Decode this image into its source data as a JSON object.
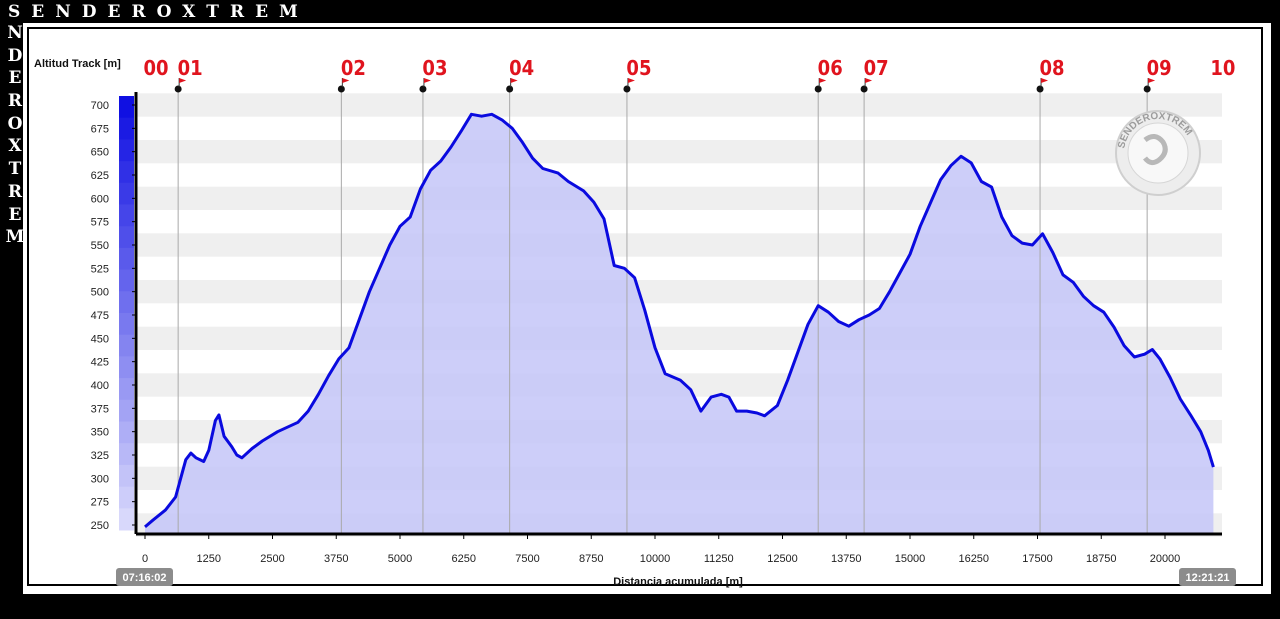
{
  "brand": {
    "top": "SENDEROXTREM",
    "side": [
      "N",
      "D",
      "E",
      "R",
      "O",
      "X",
      "T",
      "R",
      "E",
      "M"
    ],
    "logo_text": "SENDEROXTREM"
  },
  "chart_data": {
    "type": "area",
    "ylabel": "Altitud Track [m]",
    "xlabel": "Distancia acumulada [m]",
    "xlim": [
      -400,
      21900
    ],
    "ylim": [
      240,
      712
    ],
    "yticks": [
      250,
      275,
      300,
      325,
      350,
      375,
      400,
      425,
      450,
      475,
      500,
      525,
      550,
      575,
      600,
      625,
      650,
      675,
      700
    ],
    "xticks": [
      0,
      1250,
      2500,
      3750,
      5000,
      6250,
      7500,
      8750,
      10000,
      11250,
      12500,
      13750,
      15000,
      16250,
      17500,
      18750,
      20000
    ],
    "grid": true,
    "start_time": "07:16:02",
    "end_time": "12:21:21",
    "line_color": "#0a0adf",
    "fill_color": "#c4c6f8",
    "waypoints": [
      {
        "label": "00",
        "x": 0
      },
      {
        "label": "01",
        "x": 650
      },
      {
        "label": "02",
        "x": 3850
      },
      {
        "label": "03",
        "x": 5450
      },
      {
        "label": "04",
        "x": 7150
      },
      {
        "label": "05",
        "x": 9450
      },
      {
        "label": "06",
        "x": 13200
      },
      {
        "label": "07",
        "x": 14100
      },
      {
        "label": "08",
        "x": 17550
      },
      {
        "label": "09",
        "x": 19650
      },
      {
        "label": "10",
        "x": 20900
      }
    ],
    "series": [
      {
        "values": [
          [
            0,
            248
          ],
          [
            150,
            255
          ],
          [
            400,
            266
          ],
          [
            600,
            280
          ],
          [
            700,
            300
          ],
          [
            800,
            320
          ],
          [
            900,
            327
          ],
          [
            1000,
            322
          ],
          [
            1150,
            318
          ],
          [
            1250,
            330
          ],
          [
            1380,
            362
          ],
          [
            1450,
            368
          ],
          [
            1550,
            345
          ],
          [
            1700,
            334
          ],
          [
            1800,
            325
          ],
          [
            1900,
            322
          ],
          [
            2100,
            332
          ],
          [
            2300,
            340
          ],
          [
            2600,
            350
          ],
          [
            3000,
            360
          ],
          [
            3200,
            372
          ],
          [
            3400,
            390
          ],
          [
            3600,
            410
          ],
          [
            3800,
            428
          ],
          [
            4000,
            440
          ],
          [
            4200,
            470
          ],
          [
            4400,
            500
          ],
          [
            4600,
            525
          ],
          [
            4800,
            550
          ],
          [
            5000,
            570
          ],
          [
            5200,
            580
          ],
          [
            5400,
            610
          ],
          [
            5600,
            630
          ],
          [
            5800,
            640
          ],
          [
            6000,
            655
          ],
          [
            6200,
            672
          ],
          [
            6400,
            690
          ],
          [
            6600,
            688
          ],
          [
            6800,
            690
          ],
          [
            7000,
            684
          ],
          [
            7200,
            675
          ],
          [
            7400,
            660
          ],
          [
            7600,
            643
          ],
          [
            7800,
            632
          ],
          [
            8100,
            627
          ],
          [
            8300,
            618
          ],
          [
            8600,
            608
          ],
          [
            8800,
            596
          ],
          [
            9000,
            578
          ],
          [
            9200,
            528
          ],
          [
            9400,
            525
          ],
          [
            9600,
            515
          ],
          [
            9800,
            480
          ],
          [
            10000,
            440
          ],
          [
            10200,
            412
          ],
          [
            10500,
            405
          ],
          [
            10700,
            395
          ],
          [
            10900,
            372
          ],
          [
            11100,
            387
          ],
          [
            11300,
            390
          ],
          [
            11450,
            387
          ],
          [
            11600,
            372
          ],
          [
            11800,
            372
          ],
          [
            12000,
            370
          ],
          [
            12150,
            367
          ],
          [
            12400,
            378
          ],
          [
            12600,
            405
          ],
          [
            12800,
            435
          ],
          [
            13000,
            465
          ],
          [
            13200,
            485
          ],
          [
            13400,
            478
          ],
          [
            13600,
            468
          ],
          [
            13800,
            463
          ],
          [
            14000,
            470
          ],
          [
            14200,
            475
          ],
          [
            14400,
            482
          ],
          [
            14600,
            500
          ],
          [
            14800,
            520
          ],
          [
            15000,
            540
          ],
          [
            15200,
            570
          ],
          [
            15400,
            595
          ],
          [
            15600,
            620
          ],
          [
            15800,
            635
          ],
          [
            16000,
            645
          ],
          [
            16200,
            638
          ],
          [
            16400,
            618
          ],
          [
            16600,
            612
          ],
          [
            16800,
            580
          ],
          [
            17000,
            560
          ],
          [
            17200,
            552
          ],
          [
            17400,
            550
          ],
          [
            17600,
            562
          ],
          [
            17800,
            542
          ],
          [
            18000,
            518
          ],
          [
            18200,
            510
          ],
          [
            18400,
            495
          ],
          [
            18600,
            485
          ],
          [
            18800,
            478
          ],
          [
            19000,
            462
          ],
          [
            19200,
            442
          ],
          [
            19400,
            430
          ],
          [
            19600,
            433
          ],
          [
            19750,
            438
          ],
          [
            19900,
            428
          ],
          [
            20100,
            408
          ],
          [
            20300,
            385
          ],
          [
            20500,
            368
          ],
          [
            20700,
            350
          ],
          [
            20850,
            330
          ],
          [
            20950,
            312
          ]
        ]
      }
    ]
  }
}
